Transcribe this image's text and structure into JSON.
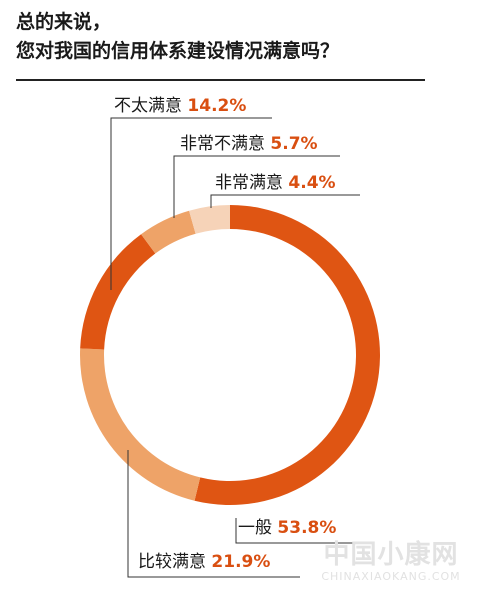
{
  "title_lines": [
    "总的来说，",
    "您对我国的信用体系建设情况满意吗？"
  ],
  "watermark": {
    "main": "中国小康网",
    "sub": "CHINAXIAOKANG.COM"
  },
  "colors": {
    "label_text": "#1a1a1a",
    "value_text": "#d94f11",
    "leader_line": "#333333"
  },
  "chart_data": {
    "type": "pie",
    "style": "donut",
    "unit": "%",
    "slices": [
      {
        "label": "一般",
        "value": 53.8,
        "value_text": "53.8%",
        "color": "#df5513"
      },
      {
        "label": "比较满意",
        "value": 21.9,
        "value_text": "21.9%",
        "color": "#eea368"
      },
      {
        "label": "不太满意",
        "value": 14.2,
        "value_text": "14.2%",
        "color": "#df5513"
      },
      {
        "label": "非常不满意",
        "value": 5.7,
        "value_text": "5.7%",
        "color": "#eea368"
      },
      {
        "label": "非常满意",
        "value": 4.4,
        "value_text": "4.4%",
        "color": "#f6d3b8"
      }
    ]
  }
}
